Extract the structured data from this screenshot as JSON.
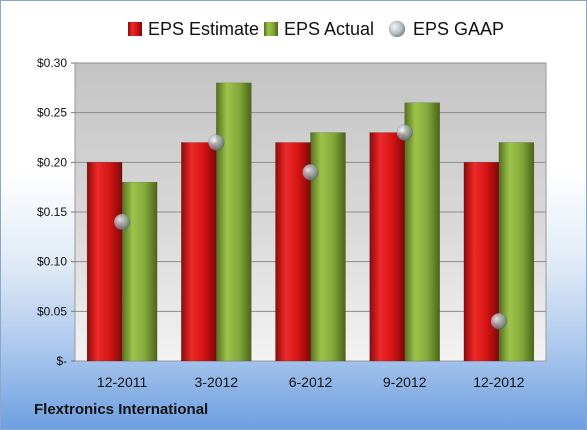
{
  "company": "Flextronics International",
  "chart_data": {
    "type": "bar",
    "categories": [
      "12-2011",
      "3-2012",
      "6-2012",
      "9-2012",
      "12-2012"
    ],
    "series": [
      {
        "name": "EPS Estimate",
        "kind": "bar",
        "color": "#cc1111",
        "values": [
          0.2,
          0.22,
          0.22,
          0.23,
          0.2
        ]
      },
      {
        "name": "EPS Actual",
        "kind": "bar",
        "color": "#7a9e2e",
        "values": [
          0.18,
          0.28,
          0.23,
          0.26,
          0.22
        ]
      },
      {
        "name": "EPS GAAP",
        "kind": "marker",
        "color": "#9aa6b4",
        "values": [
          0.14,
          0.22,
          0.19,
          0.23,
          0.04
        ]
      }
    ],
    "yticks": [
      {
        "value": 0.0,
        "label": "$-"
      },
      {
        "value": 0.05,
        "label": "$0.05"
      },
      {
        "value": 0.1,
        "label": "$0.10"
      },
      {
        "value": 0.15,
        "label": "$0.15"
      },
      {
        "value": 0.2,
        "label": "$0.20"
      },
      {
        "value": 0.25,
        "label": "$0.25"
      },
      {
        "value": 0.3,
        "label": "$0.30"
      }
    ],
    "ylim": [
      0,
      0.3
    ],
    "grid": true,
    "legend": "top"
  }
}
